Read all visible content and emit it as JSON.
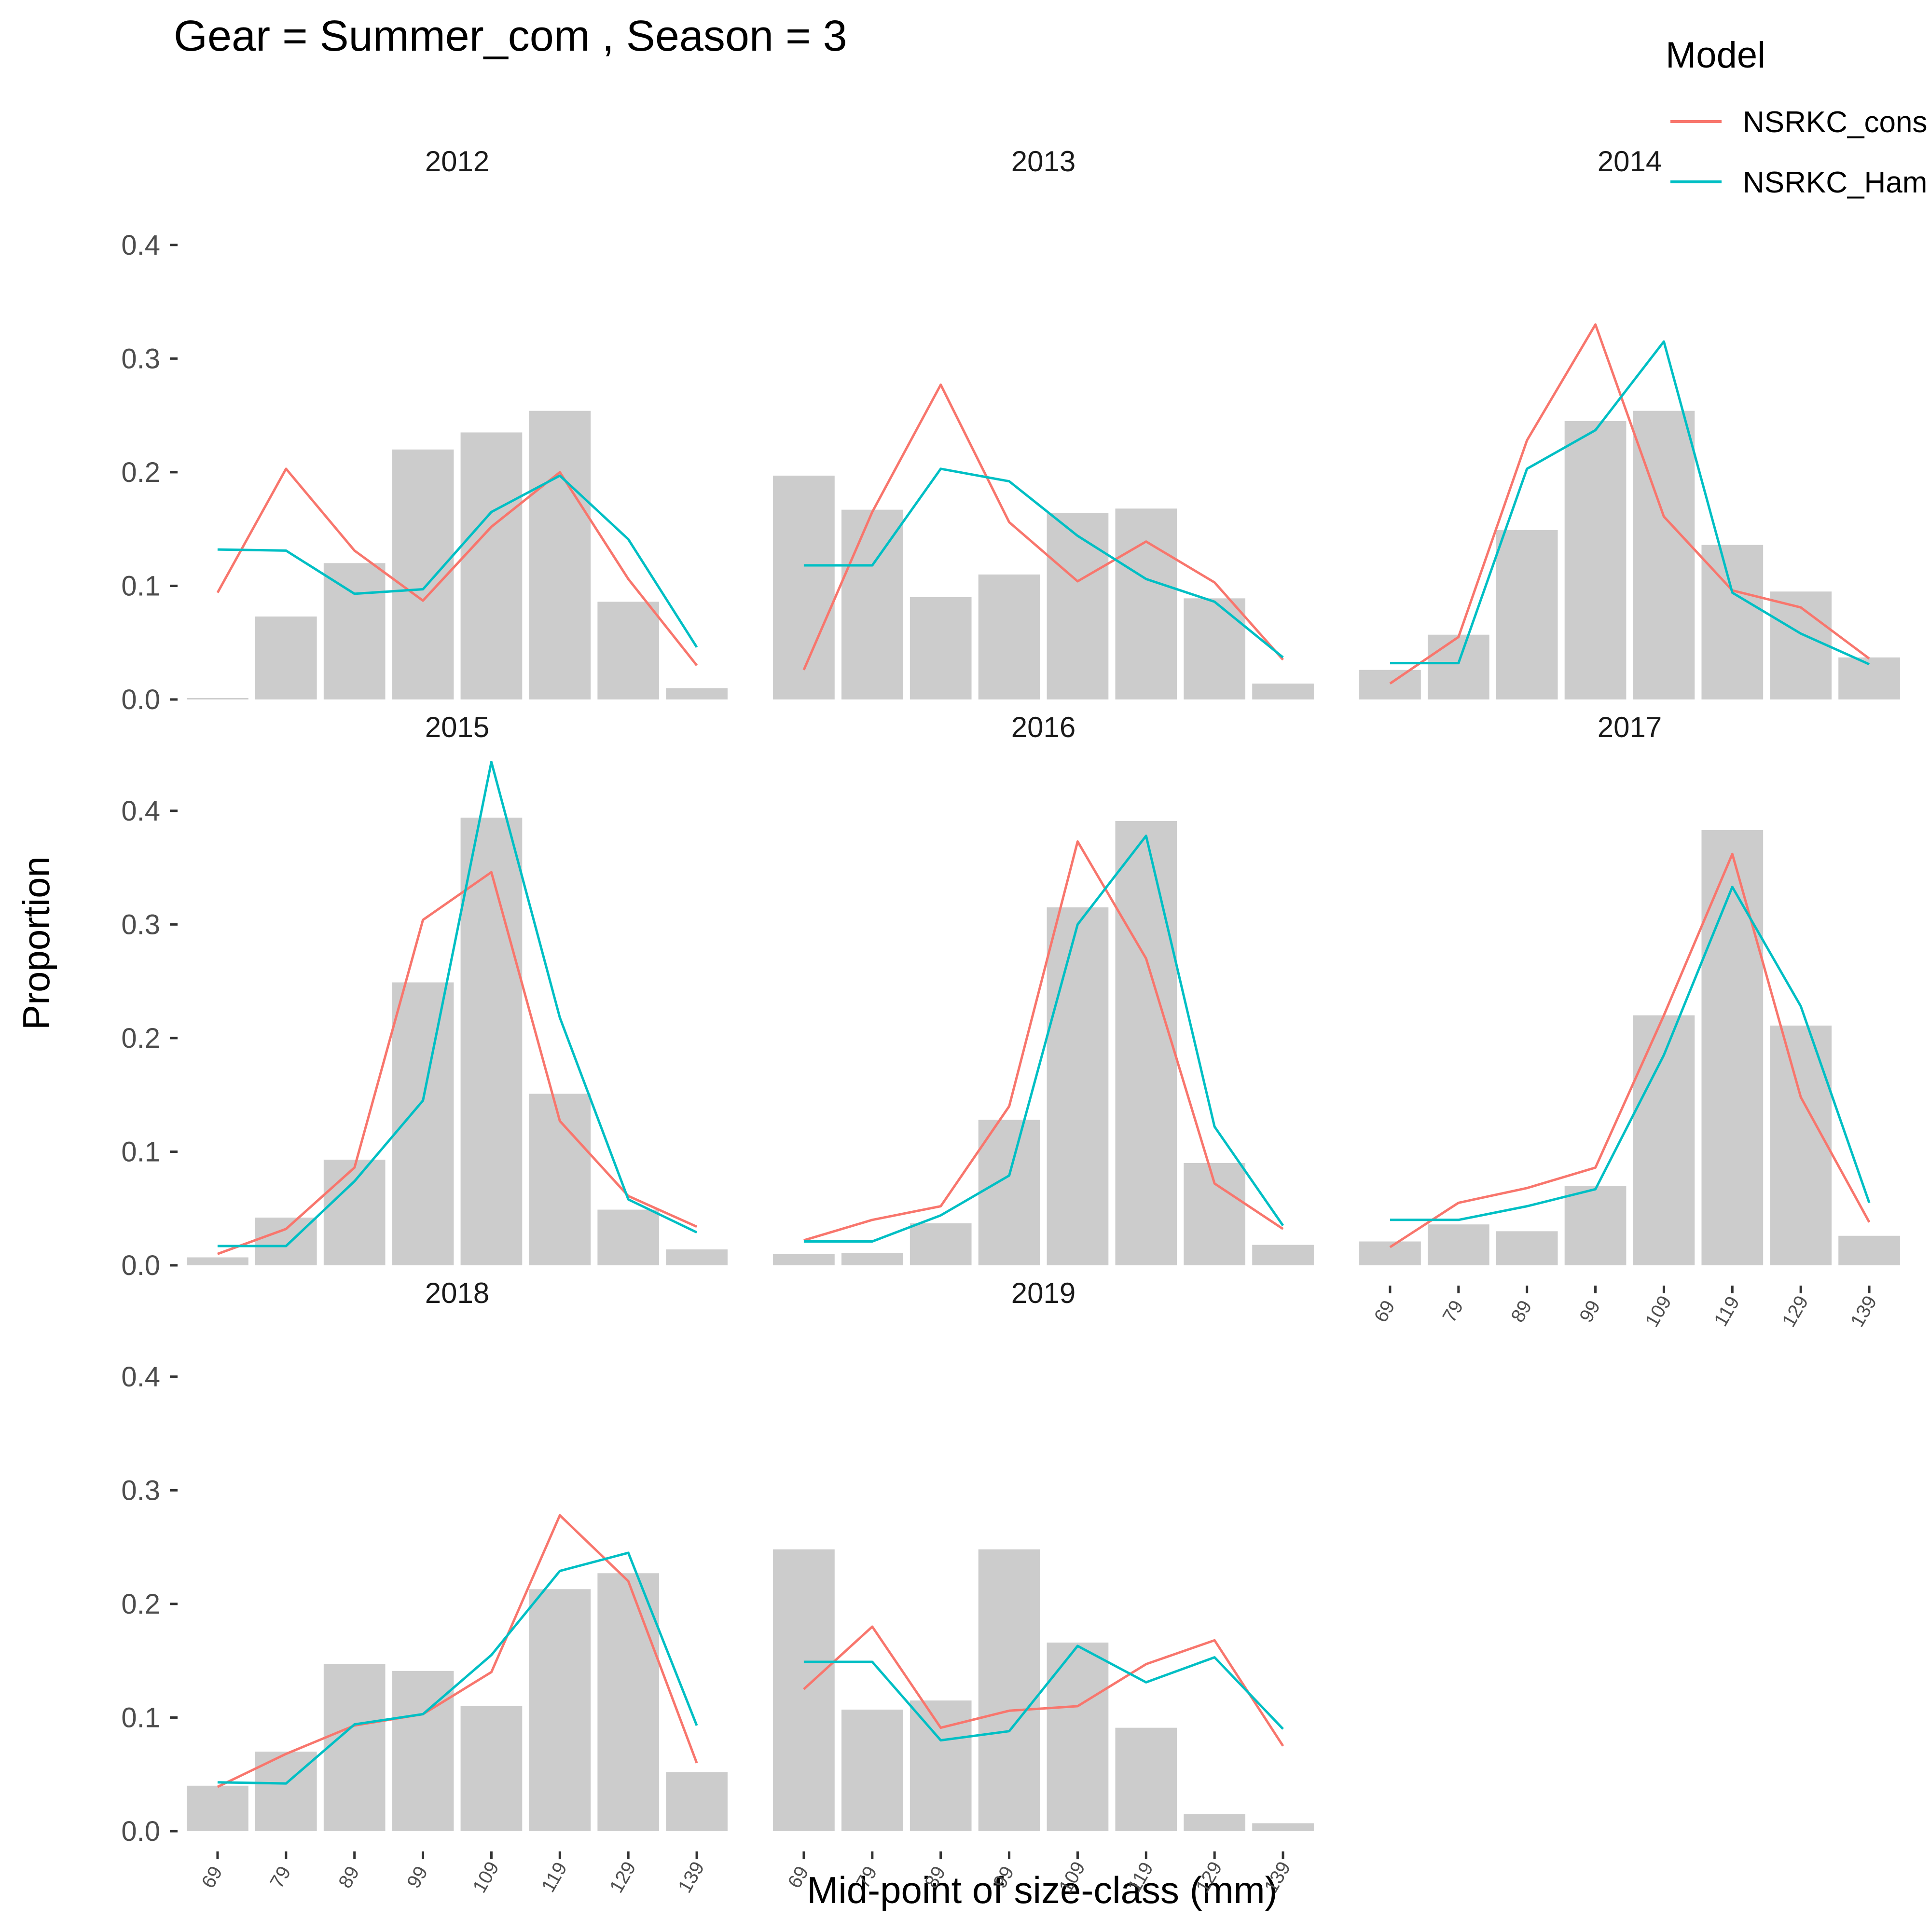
{
  "chart_data": {
    "type": "bar",
    "title": "Gear = Summer_com , Season = 3",
    "xlabel": "Mid-point of size-class (mm)",
    "ylabel": "Proportion",
    "categories": [
      "69",
      "79",
      "89",
      "99",
      "109",
      "119",
      "129",
      "139"
    ],
    "ylim": [
      0,
      0.45
    ],
    "yticks": [
      0.0,
      0.1,
      0.2,
      0.3,
      0.4
    ],
    "ytick_labels": [
      "0.0",
      "0.1",
      "0.2",
      "0.3",
      "0.4"
    ],
    "grid": false,
    "legend": {
      "title": "Model",
      "position": "top-right",
      "entries": [
        {
          "name": "NSRKC_cons",
          "color": "#F8766D"
        },
        {
          "name": "NSRKC_Ham",
          "color": "#00BFC4"
        }
      ]
    },
    "bar_color": "#CCCCCC",
    "panels": [
      {
        "label": "2012",
        "observed": [
          0.0,
          0.073,
          0.12,
          0.22,
          0.235,
          0.254,
          0.086,
          0.01
        ],
        "series": [
          {
            "name": "NSRKC_cons",
            "values": [
              0.094,
              0.203,
              0.131,
              0.087,
              0.152,
              0.2,
              0.106,
              0.03
            ]
          },
          {
            "name": "NSRKC_Ham",
            "values": [
              0.132,
              0.131,
              0.093,
              0.097,
              0.165,
              0.197,
              0.141,
              0.046
            ]
          }
        ]
      },
      {
        "label": "2015",
        "observed": [
          0.007,
          0.042,
          0.093,
          0.249,
          0.394,
          0.151,
          0.049,
          0.014
        ],
        "series": [
          {
            "name": "NSRKC_cons",
            "values": [
              0.01,
              0.032,
              0.086,
              0.304,
              0.346,
              0.127,
              0.061,
              0.034
            ]
          },
          {
            "name": "NSRKC_Ham",
            "values": [
              0.017,
              0.017,
              0.074,
              0.145,
              0.443,
              0.218,
              0.058,
              0.029
            ]
          }
        ]
      },
      {
        "label": "2018",
        "observed": [
          0.04,
          0.07,
          0.147,
          0.141,
          0.11,
          0.213,
          0.227,
          0.052
        ],
        "series": [
          {
            "name": "NSRKC_cons",
            "values": [
              0.039,
              0.068,
              0.093,
              0.103,
              0.14,
              0.278,
              0.22,
              0.06
            ]
          },
          {
            "name": "NSRKC_Ham",
            "values": [
              0.043,
              0.042,
              0.094,
              0.103,
              0.155,
              0.229,
              0.245,
              0.093
            ]
          }
        ]
      },
      {
        "label": "2013",
        "observed": [
          0.197,
          0.167,
          0.09,
          0.11,
          0.164,
          0.168,
          0.089,
          0.014
        ],
        "series": [
          {
            "name": "NSRKC_cons",
            "values": [
              0.026,
              0.165,
              0.277,
              0.156,
              0.104,
              0.139,
              0.103,
              0.035
            ]
          },
          {
            "name": "NSRKC_Ham",
            "values": [
              0.118,
              0.118,
              0.203,
              0.192,
              0.144,
              0.106,
              0.086,
              0.037
            ]
          }
        ]
      },
      {
        "label": "2016",
        "observed": [
          0.01,
          0.011,
          0.037,
          0.128,
          0.315,
          0.391,
          0.09,
          0.018
        ],
        "series": [
          {
            "name": "NSRKC_cons",
            "values": [
              0.022,
              0.04,
              0.052,
              0.14,
              0.373,
              0.27,
              0.072,
              0.032
            ]
          },
          {
            "name": "NSRKC_Ham",
            "values": [
              0.021,
              0.021,
              0.044,
              0.079,
              0.3,
              0.378,
              0.122,
              0.035
            ]
          }
        ]
      },
      {
        "label": "2019",
        "observed": [
          0.248,
          0.107,
          0.115,
          0.248,
          0.166,
          0.091,
          0.015,
          0.007
        ],
        "series": [
          {
            "name": "NSRKC_cons",
            "values": [
              0.125,
              0.18,
              0.091,
              0.106,
              0.11,
              0.147,
              0.168,
              0.075
            ]
          },
          {
            "name": "NSRKC_Ham",
            "values": [
              0.149,
              0.149,
              0.08,
              0.088,
              0.163,
              0.131,
              0.153,
              0.09
            ]
          }
        ]
      },
      {
        "label": "2014",
        "observed": [
          0.026,
          0.057,
          0.149,
          0.245,
          0.254,
          0.136,
          0.095,
          0.037
        ],
        "series": [
          {
            "name": "NSRKC_cons",
            "values": [
              0.014,
              0.055,
              0.228,
              0.33,
              0.161,
              0.096,
              0.081,
              0.036
            ]
          },
          {
            "name": "NSRKC_Ham",
            "values": [
              0.032,
              0.032,
              0.203,
              0.237,
              0.315,
              0.094,
              0.058,
              0.031
            ]
          }
        ]
      },
      {
        "label": "2017",
        "observed": [
          0.021,
          0.036,
          0.03,
          0.07,
          0.22,
          0.383,
          0.211,
          0.026
        ],
        "series": [
          {
            "name": "NSRKC_cons",
            "values": [
              0.016,
              0.055,
              0.068,
              0.086,
              0.22,
              0.362,
              0.148,
              0.038
            ]
          },
          {
            "name": "NSRKC_Ham",
            "values": [
              0.04,
              0.04,
              0.052,
              0.067,
              0.185,
              0.333,
              0.228,
              0.055
            ]
          }
        ]
      }
    ]
  }
}
